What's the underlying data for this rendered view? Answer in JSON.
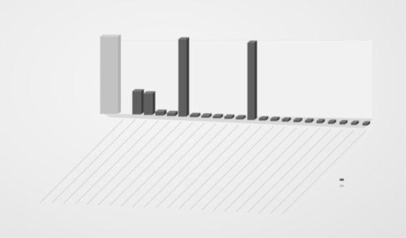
{
  "chart_data": {
    "type": "bar",
    "style": "3d-perspective",
    "title_lines": [
      "",
      "",
      ""
    ],
    "xlabel": "",
    "ylabel": "",
    "legend": {
      "placement": "right",
      "entries": [
        "",
        ""
      ]
    },
    "grid": false,
    "series": [
      {
        "values": [
          100,
          30,
          28,
          5,
          4,
          100,
          3,
          3,
          3,
          3,
          3,
          100,
          3,
          3,
          3,
          3,
          3,
          3,
          3,
          3,
          3,
          3
        ]
      }
    ],
    "categories": [
      "",
      "",
      "",
      "",
      "",
      "",
      "",
      "",
      "",
      "",
      "",
      "",
      "",
      "",
      "",
      "",
      "",
      "",
      "",
      "",
      "",
      ""
    ],
    "ylim": [
      0,
      100
    ],
    "colors": {
      "bar": "#5f5f5f",
      "first_bar": "#c2c2c2",
      "floor": "#cfcfcf"
    }
  }
}
